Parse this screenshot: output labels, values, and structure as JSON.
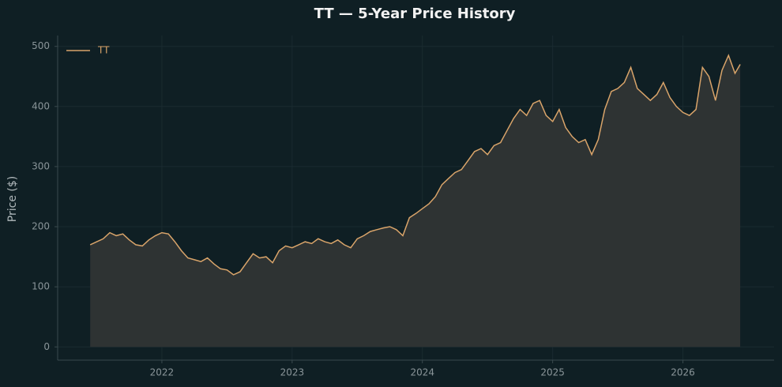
{
  "chart_data": {
    "type": "area-line",
    "title": "TT — 5-Year Price History",
    "y_label": "Price ($)",
    "series": [
      {
        "name": "TT",
        "color": "#d9a46a",
        "x": [
          2021.45,
          2021.5,
          2021.55,
          2021.6,
          2021.65,
          2021.7,
          2021.75,
          2021.8,
          2021.85,
          2021.9,
          2021.95,
          2022.0,
          2022.05,
          2022.1,
          2022.15,
          2022.2,
          2022.25,
          2022.3,
          2022.35,
          2022.4,
          2022.45,
          2022.5,
          2022.55,
          2022.6,
          2022.65,
          2022.7,
          2022.75,
          2022.8,
          2022.85,
          2022.9,
          2022.95,
          2023.0,
          2023.05,
          2023.1,
          2023.15,
          2023.2,
          2023.25,
          2023.3,
          2023.35,
          2023.4,
          2023.45,
          2023.5,
          2023.55,
          2023.6,
          2023.65,
          2023.7,
          2023.75,
          2023.8,
          2023.85,
          2023.9,
          2023.95,
          2024.0,
          2024.05,
          2024.1,
          2024.15,
          2024.2,
          2024.25,
          2024.3,
          2024.35,
          2024.4,
          2024.45,
          2024.5,
          2024.55,
          2024.6,
          2024.65,
          2024.7,
          2024.75,
          2024.8,
          2024.85,
          2024.9,
          2024.95,
          2025.0,
          2025.05,
          2025.1,
          2025.15,
          2025.2,
          2025.25,
          2025.3,
          2025.35,
          2025.4,
          2025.45,
          2025.5,
          2025.55,
          2025.6,
          2025.65,
          2025.7,
          2025.75,
          2025.8,
          2025.85,
          2025.9,
          2025.95,
          2026.0,
          2026.05,
          2026.1,
          2026.15,
          2026.2,
          2026.25,
          2026.3,
          2026.35,
          2026.4,
          2026.44
        ],
        "values": [
          170,
          175,
          180,
          190,
          185,
          188,
          178,
          170,
          168,
          178,
          185,
          190,
          188,
          175,
          160,
          148,
          145,
          142,
          148,
          138,
          130,
          128,
          120,
          125,
          140,
          155,
          148,
          150,
          140,
          160,
          168,
          165,
          170,
          175,
          172,
          180,
          175,
          172,
          178,
          170,
          165,
          180,
          185,
          192,
          195,
          198,
          200,
          195,
          185,
          215,
          222,
          230,
          238,
          250,
          270,
          280,
          290,
          295,
          310,
          325,
          330,
          320,
          335,
          340,
          360,
          380,
          395,
          385,
          405,
          410,
          385,
          375,
          395,
          365,
          350,
          340,
          345,
          320,
          345,
          395,
          425,
          430,
          440,
          465,
          430,
          420,
          410,
          420,
          440,
          415,
          400,
          390,
          385,
          395,
          465,
          450,
          410,
          460,
          485,
          455,
          470
        ]
      }
    ],
    "xlim": [
      2021.2,
      2026.7
    ],
    "xticks": [
      2022,
      2023,
      2024,
      2025,
      2026
    ],
    "ylim": [
      -22,
      518
    ],
    "yticks": [
      0,
      100,
      200,
      300,
      400,
      500
    ],
    "grid": true,
    "legend": "upper-left",
    "fill_color": "#2e3333"
  }
}
